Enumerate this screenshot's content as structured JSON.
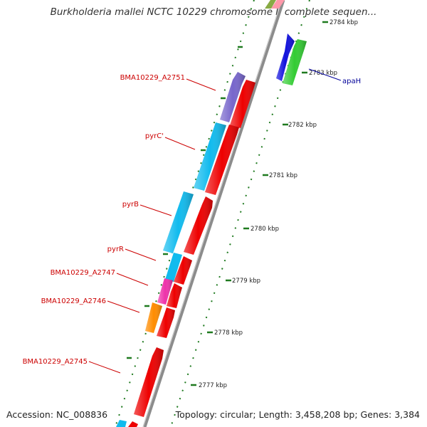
{
  "title": "Burkholderia mallei NCTC 10229 chromosome I, complete sequen...",
  "footer": {
    "accession": "Accession: NC_008836",
    "stats": "Topology: circular; Length: 3,458,208 bp; Genes: 3,384"
  },
  "colors": {
    "backbone": "#8c8c8c",
    "tick": "#1f7a1f",
    "label_left": "#cc0000",
    "label_right": "#000099",
    "cds_red": "#ee0000",
    "cds_purple": "#7766cc",
    "cds_cyan": "#11bbee",
    "cds_magenta": "#ee33aa",
    "cds_orange": "#ff8c00",
    "cds_blue": "#1111dd",
    "cds_green": "#33cc33",
    "cds_olive": "#88aa44",
    "cds_pink": "#ff99aa"
  },
  "scale_labels": [
    "2784 kbp",
    "2783 kbp",
    "2782 kbp",
    "2781 kbp",
    "2780 kbp",
    "2779 kbp",
    "2778 kbp",
    "2777 kbp"
  ],
  "gene_labels_left": [
    "BMA10229_A2751",
    "pyrC'",
    "pyrB",
    "pyrR",
    "BMA10229_A2747",
    "BMA10229_A2746",
    "BMA10229_A2745"
  ],
  "gene_labels_right": [
    "apaH"
  ]
}
